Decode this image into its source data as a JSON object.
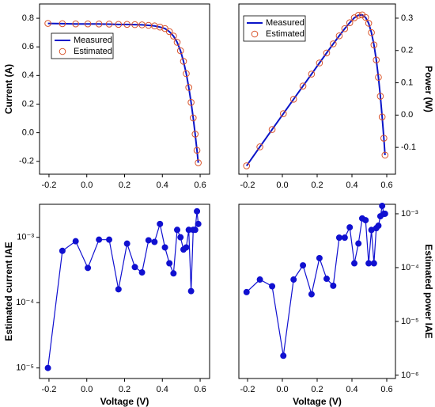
{
  "chart_data": [
    {
      "type": "line",
      "ylabel": "Current (A)",
      "y_axis_position": "left",
      "legend": "upper left",
      "x": [
        -0.2057,
        -0.1291,
        -0.0588,
        0.0057,
        0.0646,
        0.1185,
        0.1678,
        0.2132,
        0.2545,
        0.2924,
        0.3269,
        0.3585,
        0.3873,
        0.4137,
        0.4373,
        0.459,
        0.4784,
        0.496,
        0.5119,
        0.5265,
        0.5398,
        0.5521,
        0.5633,
        0.5736,
        0.5833,
        0.59
      ],
      "series": [
        {
          "name": "Measured",
          "style": "line",
          "color": "#0a14c8",
          "values": [
            0.764,
            0.762,
            0.7605,
            0.7605,
            0.76,
            0.759,
            0.757,
            0.757,
            0.7555,
            0.754,
            0.7505,
            0.7465,
            0.7385,
            0.728,
            0.7065,
            0.6755,
            0.632,
            0.573,
            0.499,
            0.413,
            0.3165,
            0.212,
            0.1035,
            -0.01,
            -0.123,
            -0.21
          ]
        },
        {
          "name": "Estimated",
          "style": "markers",
          "color": "#d9542c",
          "values": [
            0.764,
            0.762,
            0.7605,
            0.7605,
            0.76,
            0.759,
            0.757,
            0.757,
            0.7555,
            0.754,
            0.7505,
            0.7465,
            0.7385,
            0.728,
            0.7065,
            0.6755,
            0.632,
            0.573,
            0.499,
            0.413,
            0.3165,
            0.212,
            0.1035,
            -0.01,
            -0.123,
            -0.21
          ]
        }
      ],
      "xlim": [
        -0.25,
        0.65
      ],
      "xticks": [
        -0.2,
        {
          "value": 0,
          "label": "0.0"
        },
        0.2,
        0.4,
        0.6
      ],
      "ylim": [
        -0.29,
        0.9
      ],
      "yticks": [
        -0.2,
        {
          "value": 0,
          "label": "0.0"
        },
        0.2,
        0.4,
        0.6,
        0.8
      ]
    },
    {
      "type": "line",
      "ylabel": "Power (W)",
      "y_axis_position": "right",
      "legend": "upper left",
      "x": [
        -0.2057,
        -0.1291,
        -0.0588,
        0.0057,
        0.0646,
        0.1185,
        0.1678,
        0.2132,
        0.2545,
        0.2924,
        0.3269,
        0.3585,
        0.3873,
        0.4137,
        0.4373,
        0.459,
        0.4784,
        0.496,
        0.5119,
        0.5265,
        0.5398,
        0.5521,
        0.5633,
        0.5736,
        0.5833,
        0.59
      ],
      "series": [
        {
          "name": "Measured",
          "style": "line",
          "color": "#0a14c8",
          "values": [
            -0.1572,
            -0.0984,
            -0.0447,
            0.0043,
            0.0491,
            0.0899,
            0.127,
            0.1614,
            0.1923,
            0.2205,
            0.2453,
            0.2676,
            0.286,
            0.3012,
            0.309,
            0.3101,
            0.3023,
            0.2842,
            0.2554,
            0.2174,
            0.1708,
            0.117,
            0.0583,
            -0.0057,
            -0.0717,
            -0.1239
          ]
        },
        {
          "name": "Estimated",
          "style": "markers",
          "color": "#d9542c",
          "values": [
            -0.1572,
            -0.0984,
            -0.0447,
            0.0043,
            0.0491,
            0.0899,
            0.127,
            0.1614,
            0.1923,
            0.2205,
            0.2453,
            0.2676,
            0.286,
            0.3012,
            0.309,
            0.3101,
            0.3023,
            0.2842,
            0.2554,
            0.2174,
            0.1708,
            0.117,
            0.0583,
            -0.0057,
            -0.0717,
            -0.1239
          ]
        }
      ],
      "xlim": [
        -0.25,
        0.65
      ],
      "xticks": [
        -0.2,
        {
          "value": 0,
          "label": "0.0"
        },
        0.2,
        0.4,
        0.6
      ],
      "ylim": [
        -0.183,
        0.344
      ],
      "yticks": [
        -0.1,
        {
          "value": 0,
          "label": "0.0"
        },
        0.1,
        0.2,
        0.3
      ]
    },
    {
      "type": "line",
      "ylabel": "Estimated current IAE",
      "xlabel": "Voltage (V)",
      "y_axis_position": "left",
      "log_y": true,
      "x": [
        -0.2057,
        -0.1291,
        -0.0588,
        0.0057,
        0.0646,
        0.1185,
        0.1678,
        0.2132,
        0.2545,
        0.2924,
        0.3269,
        0.3585,
        0.3873,
        0.4137,
        0.4373,
        0.459,
        0.4784,
        0.496,
        0.5119,
        0.5265,
        0.5398,
        0.5521,
        0.5633,
        0.5736,
        0.5833,
        0.59
      ],
      "series": [
        {
          "style": "line-markers",
          "color": "#1010d0",
          "values": [
            1e-05,
            0.00062,
            0.00087,
            0.00034,
            0.00092,
            0.00092,
            0.00016,
            0.0008,
            0.00035,
            0.00029,
            0.0009,
            0.00085,
            0.0016,
            0.0007,
            0.0004,
            0.00028,
            0.0013,
            0.001,
            0.00065,
            0.0007,
            0.0013,
            0.00015,
            0.0013,
            0.0013,
            0.0025,
            0.0016
          ]
        }
      ],
      "xlim": [
        -0.25,
        0.65
      ],
      "xticks": [
        -0.2,
        {
          "value": 0,
          "label": "0.0"
        },
        0.2,
        0.4,
        0.6
      ],
      "ylim": [
        6.9e-06,
        0.0032
      ],
      "yticks": [
        {
          "value": 1e-05,
          "label": "10⁻⁵"
        },
        {
          "value": 0.0001,
          "label": "10⁻⁴"
        },
        {
          "value": 0.001,
          "label": "10⁻³"
        }
      ]
    },
    {
      "type": "line",
      "ylabel": "Estimated power IAE",
      "xlabel": "Voltage (V)",
      "y_axis_position": "right",
      "log_y": true,
      "x": [
        -0.2057,
        -0.1291,
        -0.0588,
        0.0057,
        0.0646,
        0.1185,
        0.1678,
        0.2132,
        0.2545,
        0.2924,
        0.3269,
        0.3585,
        0.3873,
        0.4137,
        0.4373,
        0.459,
        0.4784,
        0.496,
        0.5119,
        0.5265,
        0.5398,
        0.5521,
        0.5633,
        0.5736,
        0.5833,
        0.59
      ],
      "series": [
        {
          "style": "line-markers",
          "color": "#1010d0",
          "values": [
            3.5e-05,
            6e-05,
            4.5e-05,
            2.3e-06,
            6e-05,
            0.00011,
            3.2e-05,
            0.00015,
            6.2e-05,
            4.6e-05,
            0.00036,
            0.00036,
            0.00056,
            0.00012,
            0.00028,
            0.00082,
            0.00076,
            0.00012,
            0.0005,
            0.00012,
            0.00054,
            0.0006,
            0.0009,
            0.0014,
            0.001,
            0.001
          ]
        }
      ],
      "xlim": [
        -0.25,
        0.65
      ],
      "xticks": [
        -0.2,
        {
          "value": 0,
          "label": "0.0"
        },
        0.2,
        0.4,
        0.6
      ],
      "ylim": [
        8.7e-07,
        0.0015
      ],
      "yticks": [
        {
          "value": 1e-06,
          "label": "10⁻⁶"
        },
        {
          "value": 1e-05,
          "label": "10⁻⁵"
        },
        {
          "value": 0.0001,
          "label": "10⁻⁴"
        },
        {
          "value": 0.001,
          "label": "10⁻³"
        }
      ]
    }
  ]
}
